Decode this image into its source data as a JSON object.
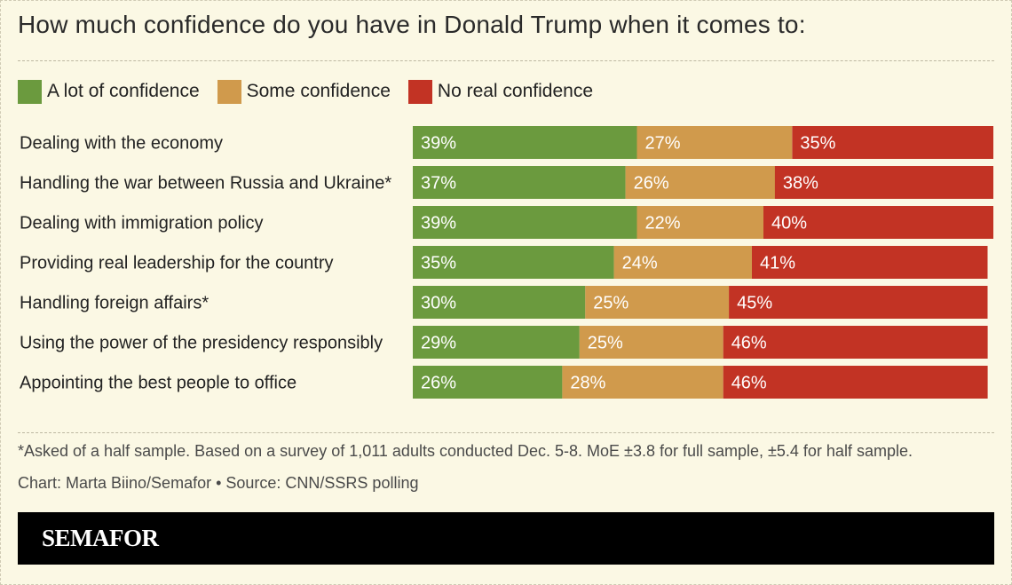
{
  "title": "How much confidence do you have in Donald Trump when it comes to:",
  "colors": {
    "a_lot": "#6b9a3e",
    "some": "#d09a4c",
    "no_real": "#c23324",
    "background": "#fbf8e4"
  },
  "chart_data": {
    "type": "bar",
    "orientation": "horizontal",
    "stacked": true,
    "title": "How much confidence do you have in Donald Trump when it comes to:",
    "categories": [
      "Dealing with the economy",
      "Handling the war between Russia and Ukraine*",
      "Dealing with immigration policy",
      "Providing real leadership for the country",
      "Handling foreign affairs*",
      "Using the power of the presidency responsibly",
      "Appointing the best people to office"
    ],
    "series": [
      {
        "name": "A lot of confidence",
        "values": [
          39,
          37,
          39,
          35,
          30,
          29,
          26
        ]
      },
      {
        "name": "Some confidence",
        "values": [
          27,
          26,
          22,
          24,
          25,
          25,
          28
        ]
      },
      {
        "name": "No real confidence",
        "values": [
          35,
          38,
          40,
          41,
          45,
          46,
          46
        ]
      }
    ],
    "value_suffix": "%",
    "xlim": [
      0,
      101
    ],
    "legend": "top-left"
  },
  "footnote": "*Asked of a half sample. Based on a survey of 1,011 adults conducted Dec. 5-8. MoE ±3.8 for full sample, ±5.4 for half sample.",
  "credit": "Chart: Marta Biino/Semafor • Source: CNN/SSRS polling",
  "brand": "SEMAFOR"
}
